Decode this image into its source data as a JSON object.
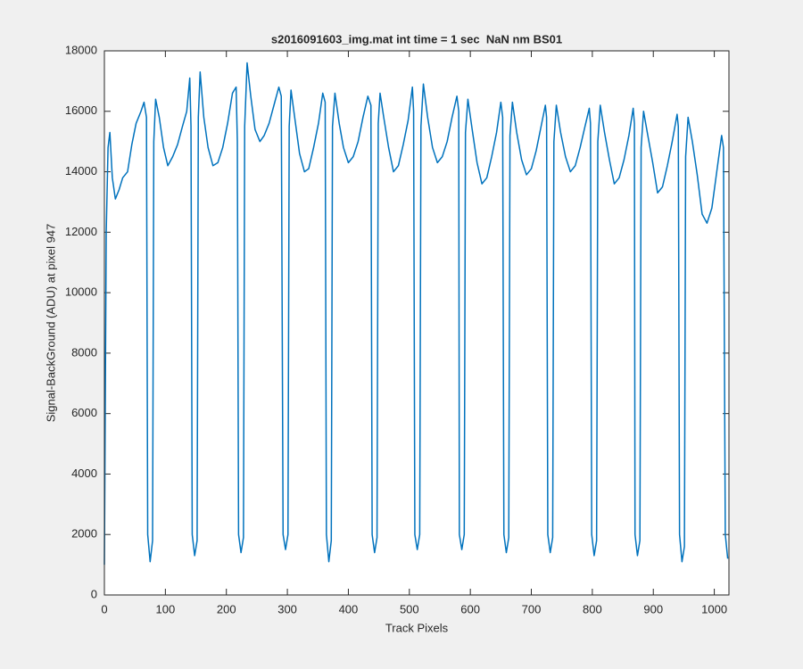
{
  "chart_data": {
    "type": "line",
    "title": "s2016091603_img.mat int time = 1 sec  NaN nm BS01",
    "x_label": "Track Pixels",
    "y_label": "Signal-BackGround (ADU) at pixel 947",
    "xlim": [
      0,
      1024
    ],
    "xticks": [
      0,
      100,
      200,
      300,
      400,
      500,
      600,
      700,
      800,
      900,
      1000
    ],
    "ylim": [
      0,
      18000
    ],
    "yticks": [
      0,
      2000,
      4000,
      6000,
      8000,
      10000,
      12000,
      14000,
      16000,
      18000
    ],
    "grid": false,
    "series": [
      {
        "color": "#0072bd",
        "x": [
          0,
          3,
          6,
          9,
          13,
          18,
          24,
          30,
          38,
          45,
          52,
          60,
          65,
          69,
          71,
          75,
          79,
          81,
          84,
          90,
          97,
          104,
          112,
          120,
          128,
          135,
          140,
          142,
          144,
          148,
          152,
          154,
          157,
          163,
          170,
          178,
          186,
          194,
          202,
          210,
          216,
          218,
          220,
          224,
          228,
          230,
          234,
          240,
          247,
          255,
          262,
          270,
          278,
          286,
          290,
          293,
          297,
          301,
          303,
          306,
          312,
          320,
          328,
          335,
          343,
          351,
          358,
          362,
          364,
          368,
          372,
          374,
          378,
          385,
          392,
          400,
          408,
          416,
          424,
          432,
          437,
          439,
          443,
          447,
          449,
          452,
          458,
          466,
          474,
          482,
          490,
          498,
          505,
          507,
          509,
          513,
          517,
          519,
          523,
          530,
          538,
          546,
          554,
          562,
          570,
          578,
          581,
          582,
          586,
          590,
          592,
          596,
          603,
          611,
          619,
          627,
          635,
          643,
          650,
          653,
          655,
          659,
          663,
          665,
          669,
          676,
          684,
          692,
          700,
          708,
          716,
          723,
          725,
          727,
          731,
          735,
          737,
          741,
          748,
          756,
          764,
          772,
          780,
          788,
          795,
          797,
          799,
          803,
          807,
          809,
          813,
          820,
          828,
          836,
          844,
          852,
          860,
          867,
          869,
          870,
          874,
          878,
          880,
          884,
          891,
          899,
          907,
          915,
          923,
          931,
          939,
          941,
          943,
          947,
          951,
          953,
          957,
          964,
          972,
          980,
          988,
          996,
          1004,
          1012,
          1015,
          1018,
          1022
        ],
        "values": [
          1000,
          12000,
          14800,
          15300,
          13800,
          13100,
          13400,
          13800,
          14000,
          14900,
          15600,
          16000,
          16300,
          15800,
          2000,
          1100,
          1800,
          15000,
          16400,
          15800,
          14800,
          14200,
          14500,
          14900,
          15500,
          16000,
          17100,
          15500,
          2000,
          1300,
          1800,
          15800,
          17300,
          15800,
          14800,
          14200,
          14300,
          14800,
          15600,
          16600,
          16800,
          15000,
          2000,
          1400,
          1900,
          15500,
          17600,
          16500,
          15400,
          15000,
          15200,
          15600,
          16200,
          16800,
          16500,
          2000,
          1500,
          2000,
          15500,
          16700,
          15800,
          14600,
          14000,
          14100,
          14800,
          15600,
          16600,
          16300,
          2000,
          1100,
          1800,
          15500,
          16600,
          15600,
          14800,
          14300,
          14500,
          15000,
          15800,
          16500,
          16200,
          2000,
          1400,
          1900,
          15600,
          16600,
          15800,
          14800,
          14000,
          14200,
          14900,
          15700,
          16800,
          16000,
          2000,
          1500,
          2000,
          15500,
          16900,
          15800,
          14800,
          14300,
          14500,
          15000,
          15800,
          16500,
          16000,
          2000,
          1500,
          2000,
          15300,
          16400,
          15400,
          14300,
          13600,
          13800,
          14500,
          15300,
          16300,
          15800,
          2000,
          1400,
          1900,
          15200,
          16300,
          15300,
          14400,
          13900,
          14100,
          14700,
          15500,
          16200,
          15800,
          2000,
          1400,
          1900,
          15000,
          16200,
          15300,
          14500,
          14000,
          14200,
          14800,
          15500,
          16100,
          15600,
          2000,
          1300,
          1800,
          15000,
          16200,
          15300,
          14400,
          13600,
          13800,
          14400,
          15200,
          16100,
          15600,
          2000,
          1300,
          1800,
          14800,
          16000,
          15200,
          14300,
          13300,
          13500,
          14200,
          15000,
          15900,
          15500,
          2000,
          1100,
          1600,
          14500,
          15800,
          15000,
          13900,
          12600,
          12300,
          12800,
          14000,
          15200,
          14800,
          2000,
          1200
        ]
      }
    ]
  }
}
